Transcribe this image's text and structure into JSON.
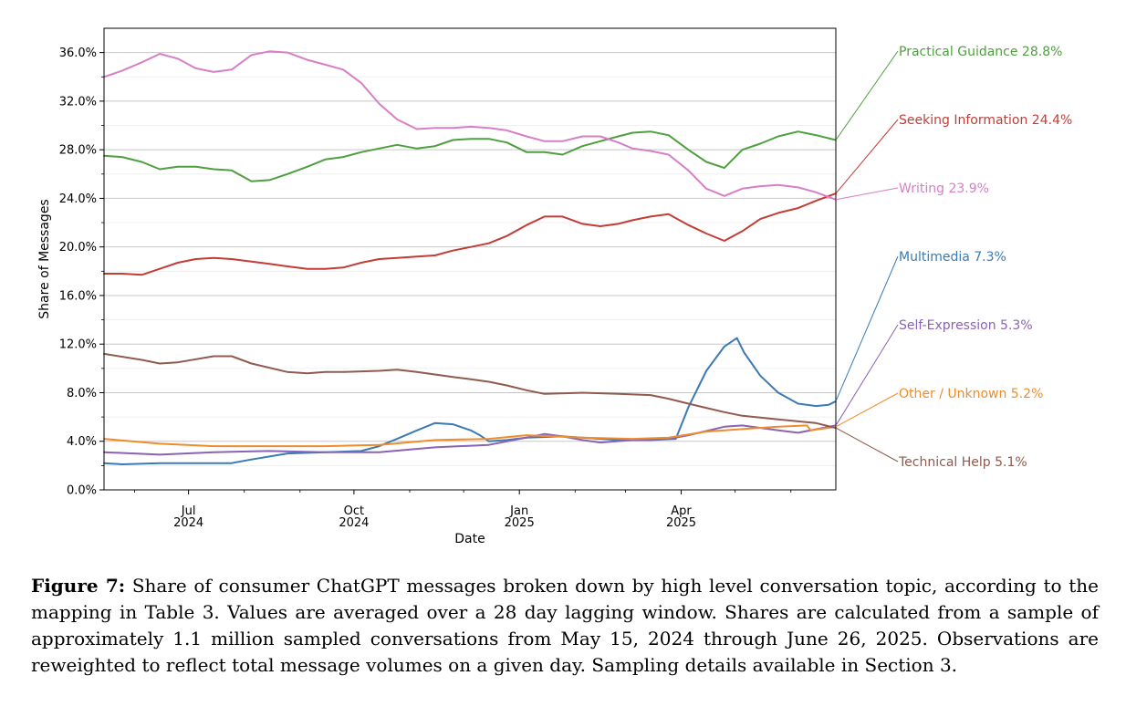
{
  "chart_data": {
    "type": "line",
    "xlabel": "Date",
    "ylabel": "Share of Messages",
    "x_range": [
      "2024-05-15",
      "2025-06-26"
    ],
    "ylim": [
      0,
      38
    ],
    "y_ticks": [
      0,
      4,
      8,
      12,
      16,
      20,
      24,
      28,
      32,
      36
    ],
    "y_tick_labels": [
      "0.0%",
      "4.0%",
      "8.0%",
      "12.0%",
      "16.0%",
      "20.0%",
      "24.0%",
      "28.0%",
      "32.0%",
      "36.0%"
    ],
    "x_ticks": [
      {
        "date": "2024-07-01",
        "month": "Jul",
        "year": "2024"
      },
      {
        "date": "2024-10-01",
        "month": "Oct",
        "year": "2024"
      },
      {
        "date": "2025-01-01",
        "month": "Jan",
        "year": "2025"
      },
      {
        "date": "2025-04-01",
        "month": "Apr",
        "year": "2025"
      }
    ],
    "minor_x_ticks": [
      "2024-06-01",
      "2024-08-01",
      "2024-09-01",
      "2024-11-01",
      "2024-12-01",
      "2025-02-01",
      "2025-03-01",
      "2025-05-01",
      "2025-06-01"
    ],
    "grid": "horizontal",
    "legend_position": "right, end-of-line labels",
    "series": [
      {
        "name": "Practical Guidance",
        "final_label": "28.8%",
        "color": "#4f9e3f",
        "points": [
          [
            "2024-05-15",
            27.5
          ],
          [
            "2024-05-25",
            27.4
          ],
          [
            "2024-06-05",
            27.0
          ],
          [
            "2024-06-15",
            26.4
          ],
          [
            "2024-06-25",
            26.6
          ],
          [
            "2024-07-05",
            26.6
          ],
          [
            "2024-07-15",
            26.4
          ],
          [
            "2024-07-25",
            26.3
          ],
          [
            "2024-08-05",
            25.4
          ],
          [
            "2024-08-15",
            25.5
          ],
          [
            "2024-08-25",
            26.0
          ],
          [
            "2024-09-05",
            26.6
          ],
          [
            "2024-09-15",
            27.2
          ],
          [
            "2024-09-25",
            27.4
          ],
          [
            "2024-10-05",
            27.8
          ],
          [
            "2024-10-15",
            28.1
          ],
          [
            "2024-10-25",
            28.4
          ],
          [
            "2024-11-05",
            28.1
          ],
          [
            "2024-11-15",
            28.3
          ],
          [
            "2024-11-25",
            28.8
          ],
          [
            "2024-12-05",
            28.9
          ],
          [
            "2024-12-15",
            28.9
          ],
          [
            "2024-12-25",
            28.6
          ],
          [
            "2025-01-05",
            27.8
          ],
          [
            "2025-01-15",
            27.8
          ],
          [
            "2025-01-25",
            27.6
          ],
          [
            "2025-02-05",
            28.3
          ],
          [
            "2025-02-15",
            28.7
          ],
          [
            "2025-02-25",
            29.1
          ],
          [
            "2025-03-05",
            29.4
          ],
          [
            "2025-03-15",
            29.5
          ],
          [
            "2025-03-25",
            29.2
          ],
          [
            "2025-04-05",
            28.0
          ],
          [
            "2025-04-15",
            27.0
          ],
          [
            "2025-04-25",
            26.5
          ],
          [
            "2025-05-05",
            28.0
          ],
          [
            "2025-05-15",
            28.5
          ],
          [
            "2025-05-25",
            29.1
          ],
          [
            "2025-06-05",
            29.5
          ],
          [
            "2025-06-15",
            29.2
          ],
          [
            "2025-06-26",
            28.8
          ]
        ]
      },
      {
        "name": "Seeking Information",
        "final_label": "24.4%",
        "color": "#c33c36",
        "points": [
          [
            "2024-05-15",
            17.8
          ],
          [
            "2024-05-25",
            17.8
          ],
          [
            "2024-06-05",
            17.7
          ],
          [
            "2024-06-15",
            18.2
          ],
          [
            "2024-06-25",
            18.7
          ],
          [
            "2024-07-05",
            19.0
          ],
          [
            "2024-07-15",
            19.1
          ],
          [
            "2024-07-25",
            19.0
          ],
          [
            "2024-08-05",
            18.8
          ],
          [
            "2024-08-15",
            18.6
          ],
          [
            "2024-08-25",
            18.4
          ],
          [
            "2024-09-05",
            18.2
          ],
          [
            "2024-09-15",
            18.2
          ],
          [
            "2024-09-25",
            18.3
          ],
          [
            "2024-10-05",
            18.7
          ],
          [
            "2024-10-15",
            19.0
          ],
          [
            "2024-10-25",
            19.1
          ],
          [
            "2024-11-05",
            19.2
          ],
          [
            "2024-11-15",
            19.3
          ],
          [
            "2024-11-25",
            19.7
          ],
          [
            "2024-12-05",
            20.0
          ],
          [
            "2024-12-15",
            20.3
          ],
          [
            "2024-12-25",
            20.9
          ],
          [
            "2025-01-05",
            21.8
          ],
          [
            "2025-01-15",
            22.5
          ],
          [
            "2025-01-25",
            22.5
          ],
          [
            "2025-02-05",
            21.9
          ],
          [
            "2025-02-15",
            21.7
          ],
          [
            "2025-02-25",
            21.9
          ],
          [
            "2025-03-05",
            22.2
          ],
          [
            "2025-03-15",
            22.5
          ],
          [
            "2025-03-25",
            22.7
          ],
          [
            "2025-04-05",
            21.8
          ],
          [
            "2025-04-15",
            21.1
          ],
          [
            "2025-04-25",
            20.5
          ],
          [
            "2025-05-05",
            21.3
          ],
          [
            "2025-05-15",
            22.3
          ],
          [
            "2025-05-25",
            22.8
          ],
          [
            "2025-06-05",
            23.2
          ],
          [
            "2025-06-15",
            23.8
          ],
          [
            "2025-06-26",
            24.4
          ]
        ]
      },
      {
        "name": "Writing",
        "final_label": "23.9%",
        "color": "#d77fc6",
        "points": [
          [
            "2024-05-15",
            34.0
          ],
          [
            "2024-05-25",
            34.5
          ],
          [
            "2024-06-05",
            35.2
          ],
          [
            "2024-06-15",
            35.9
          ],
          [
            "2024-06-25",
            35.5
          ],
          [
            "2024-07-05",
            34.7
          ],
          [
            "2024-07-15",
            34.4
          ],
          [
            "2024-07-25",
            34.6
          ],
          [
            "2024-08-05",
            35.8
          ],
          [
            "2024-08-15",
            36.1
          ],
          [
            "2024-08-25",
            36.0
          ],
          [
            "2024-09-05",
            35.4
          ],
          [
            "2024-09-15",
            35.0
          ],
          [
            "2024-09-25",
            34.6
          ],
          [
            "2024-10-05",
            33.5
          ],
          [
            "2024-10-15",
            31.8
          ],
          [
            "2024-10-25",
            30.5
          ],
          [
            "2024-11-05",
            29.7
          ],
          [
            "2024-11-15",
            29.8
          ],
          [
            "2024-11-25",
            29.8
          ],
          [
            "2024-12-05",
            29.9
          ],
          [
            "2024-12-15",
            29.8
          ],
          [
            "2024-12-25",
            29.6
          ],
          [
            "2025-01-05",
            29.1
          ],
          [
            "2025-01-15",
            28.7
          ],
          [
            "2025-01-25",
            28.7
          ],
          [
            "2025-02-05",
            29.1
          ],
          [
            "2025-02-15",
            29.1
          ],
          [
            "2025-02-25",
            28.6
          ],
          [
            "2025-03-05",
            28.1
          ],
          [
            "2025-03-15",
            27.9
          ],
          [
            "2025-03-25",
            27.6
          ],
          [
            "2025-04-05",
            26.3
          ],
          [
            "2025-04-15",
            24.8
          ],
          [
            "2025-04-25",
            24.2
          ],
          [
            "2025-05-05",
            24.8
          ],
          [
            "2025-05-15",
            25.0
          ],
          [
            "2025-05-25",
            25.1
          ],
          [
            "2025-06-05",
            24.9
          ],
          [
            "2025-06-15",
            24.5
          ],
          [
            "2025-06-26",
            23.9
          ]
        ]
      },
      {
        "name": "Multimedia",
        "final_label": "7.3%",
        "color": "#3a7ab5",
        "points": [
          [
            "2024-05-15",
            2.2
          ],
          [
            "2024-05-25",
            2.1
          ],
          [
            "2024-06-15",
            2.2
          ],
          [
            "2024-07-05",
            2.2
          ],
          [
            "2024-07-25",
            2.2
          ],
          [
            "2024-08-05",
            2.5
          ],
          [
            "2024-08-25",
            3.0
          ],
          [
            "2024-09-15",
            3.1
          ],
          [
            "2024-10-05",
            3.2
          ],
          [
            "2024-10-15",
            3.6
          ],
          [
            "2024-10-25",
            4.2
          ],
          [
            "2024-11-05",
            4.9
          ],
          [
            "2024-11-15",
            5.5
          ],
          [
            "2024-11-25",
            5.4
          ],
          [
            "2024-12-05",
            4.9
          ],
          [
            "2024-12-10",
            4.5
          ],
          [
            "2024-12-15",
            4.0
          ],
          [
            "2024-12-25",
            4.1
          ],
          [
            "2025-01-05",
            4.3
          ],
          [
            "2025-01-25",
            4.4
          ],
          [
            "2025-02-05",
            4.3
          ],
          [
            "2025-02-25",
            4.1
          ],
          [
            "2025-03-15",
            4.1
          ],
          [
            "2025-03-29",
            4.2
          ],
          [
            "2025-04-05",
            6.8
          ],
          [
            "2025-04-15",
            9.8
          ],
          [
            "2025-04-25",
            11.8
          ],
          [
            "2025-05-02",
            12.5
          ],
          [
            "2025-05-06",
            11.3
          ],
          [
            "2025-05-15",
            9.4
          ],
          [
            "2025-05-25",
            8.0
          ],
          [
            "2025-06-05",
            7.1
          ],
          [
            "2025-06-15",
            6.9
          ],
          [
            "2025-06-22",
            7.0
          ],
          [
            "2025-06-26",
            7.3
          ]
        ]
      },
      {
        "name": "Self-Expression",
        "final_label": "5.3%",
        "color": "#8a63b4",
        "points": [
          [
            "2024-05-15",
            3.1
          ],
          [
            "2024-06-15",
            2.9
          ],
          [
            "2024-07-15",
            3.1
          ],
          [
            "2024-08-15",
            3.2
          ],
          [
            "2024-09-15",
            3.1
          ],
          [
            "2024-10-15",
            3.1
          ],
          [
            "2024-11-15",
            3.5
          ],
          [
            "2024-12-15",
            3.7
          ],
          [
            "2025-01-05",
            4.3
          ],
          [
            "2025-01-15",
            4.6
          ],
          [
            "2025-01-25",
            4.4
          ],
          [
            "2025-02-05",
            4.1
          ],
          [
            "2025-02-15",
            3.9
          ],
          [
            "2025-03-05",
            4.1
          ],
          [
            "2025-03-25",
            4.2
          ],
          [
            "2025-04-05",
            4.5
          ],
          [
            "2025-04-25",
            5.2
          ],
          [
            "2025-05-05",
            5.3
          ],
          [
            "2025-05-25",
            4.9
          ],
          [
            "2025-06-05",
            4.7
          ],
          [
            "2025-06-26",
            5.3
          ]
        ]
      },
      {
        "name": "Other / Unknown",
        "final_label": "5.2%",
        "color": "#ef8c2c",
        "points": [
          [
            "2024-05-15",
            4.2
          ],
          [
            "2024-06-15",
            3.8
          ],
          [
            "2024-07-15",
            3.6
          ],
          [
            "2024-08-15",
            3.6
          ],
          [
            "2024-09-15",
            3.6
          ],
          [
            "2024-10-15",
            3.7
          ],
          [
            "2024-11-15",
            4.1
          ],
          [
            "2024-12-15",
            4.2
          ],
          [
            "2025-01-05",
            4.5
          ],
          [
            "2025-02-05",
            4.3
          ],
          [
            "2025-03-05",
            4.2
          ],
          [
            "2025-03-25",
            4.3
          ],
          [
            "2025-04-15",
            4.8
          ],
          [
            "2025-05-05",
            5.0
          ],
          [
            "2025-05-25",
            5.2
          ],
          [
            "2025-06-10",
            5.3
          ],
          [
            "2025-06-12",
            4.9
          ],
          [
            "2025-06-26",
            5.2
          ]
        ]
      },
      {
        "name": "Technical Help",
        "final_label": "5.1%",
        "color": "#8e5b4e",
        "points": [
          [
            "2024-05-15",
            11.2
          ],
          [
            "2024-06-05",
            10.7
          ],
          [
            "2024-06-15",
            10.4
          ],
          [
            "2024-06-25",
            10.5
          ],
          [
            "2024-07-15",
            11.0
          ],
          [
            "2024-07-25",
            11.0
          ],
          [
            "2024-08-05",
            10.4
          ],
          [
            "2024-08-25",
            9.7
          ],
          [
            "2024-09-05",
            9.6
          ],
          [
            "2024-09-15",
            9.7
          ],
          [
            "2024-09-25",
            9.7
          ],
          [
            "2024-10-15",
            9.8
          ],
          [
            "2024-10-25",
            9.9
          ],
          [
            "2024-11-05",
            9.7
          ],
          [
            "2024-11-25",
            9.3
          ],
          [
            "2024-12-05",
            9.1
          ],
          [
            "2024-12-15",
            8.9
          ],
          [
            "2024-12-25",
            8.6
          ],
          [
            "2025-01-05",
            8.2
          ],
          [
            "2025-01-15",
            7.9
          ],
          [
            "2025-02-05",
            8.0
          ],
          [
            "2025-02-25",
            7.9
          ],
          [
            "2025-03-15",
            7.8
          ],
          [
            "2025-03-25",
            7.5
          ],
          [
            "2025-04-05",
            7.1
          ],
          [
            "2025-04-25",
            6.4
          ],
          [
            "2025-05-05",
            6.1
          ],
          [
            "2025-05-25",
            5.8
          ],
          [
            "2025-06-15",
            5.5
          ],
          [
            "2025-06-26",
            5.1
          ]
        ]
      }
    ],
    "label_values": [
      28.8,
      24.4,
      23.9,
      7.3,
      5.3,
      5.2,
      5.1
    ]
  },
  "caption": {
    "label": "Figure 7:",
    "text": " Share of consumer ChatGPT messages broken down by high level conversation topic, according to the mapping in Table 3. Values are averaged over a 28 day lagging window. Shares are calculated from a sample of approximately 1.1 million sampled conversations from May 15, 2024 through June 26, 2025. Observations are reweighted to reflect total message volumes on a given day. Sampling details available in Section 3."
  }
}
